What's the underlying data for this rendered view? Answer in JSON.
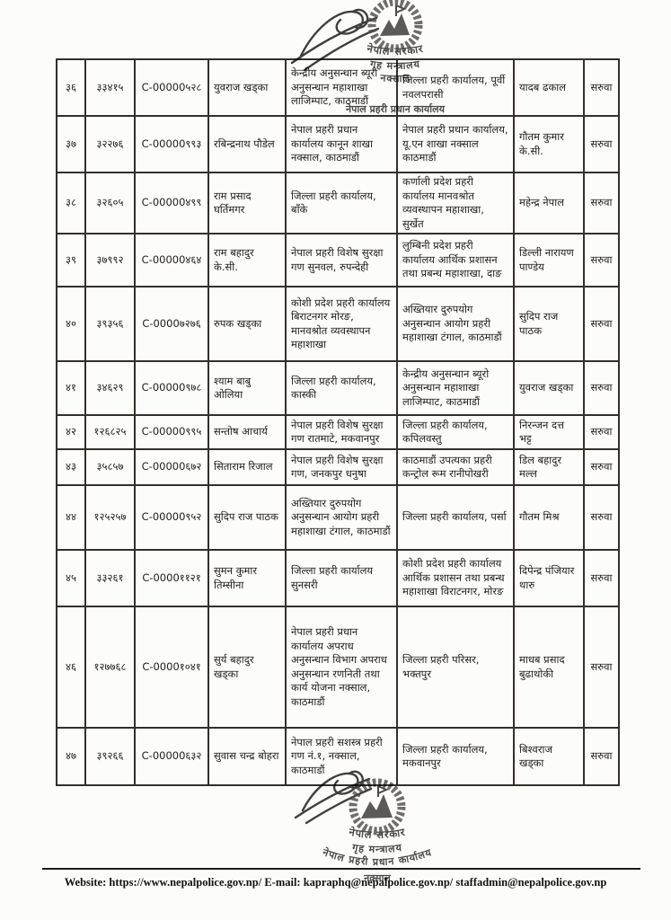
{
  "stamp": {
    "line1": "नेपाल सरकार",
    "line2": "गृह मन्त्रालय",
    "line3": "नेपाल प्रहरी प्रधान कार्यालय",
    "line4": "नक्साल"
  },
  "footer": {
    "full_text": "Website: https://www.nepalpolice.gov.np/ E-mail: kapraphq@nepalpolice.gov.np/ staffadmin@nepalpolice.gov.np"
  },
  "table": {
    "rows": [
      {
        "sn": "३६",
        "code": "३३४१५",
        "cno": "C-00000५२८",
        "name": "युवराज खड्का",
        "current_office": "केन्द्रीय अनुसन्धान ब्यूरो अनुसन्धान महाशाखा लाजिम्पाट, काठमाडौं",
        "new_office": "जिल्ला प्रहरी कार्यालय, पूर्वी नवलपरासी",
        "recommender": "यादब ढकाल",
        "status": "सरुवा"
      },
      {
        "sn": "३७",
        "code": "३२२७६",
        "cno": "C-00000९९३",
        "name": "रबिन्द्रनाथ पौडेल",
        "current_office": "नेपाल प्रहरी प्रधान कार्यालय कानून शाखा नक्साल, काठमाडौं",
        "new_office": "नेपाल प्रहरी प्रधान कार्यालय, यू.एन शाखा नक्साल काठमाडौं",
        "recommender": "गौतम कुमार के.सी.",
        "status": "सरुवा"
      },
      {
        "sn": "३८",
        "code": "३२६०५",
        "cno": "C-00000४९९",
        "name": "राम प्रसाद घर्तिमगर",
        "current_office": "जिल्ला प्रहरी कार्यालय, बाँके",
        "new_office": "कर्णाली प्रदेश प्रहरी कार्यालय मानवश्रोत व्यवस्थापन महाशाखा, सुर्खेत",
        "recommender": "महेन्द्र नेपाल",
        "status": "सरुवा"
      },
      {
        "sn": "३९",
        "code": "३७९९२",
        "cno": "C-00000४६४",
        "name": "राम बहादुर के.सी.",
        "current_office": "नेपाल प्रहरी विशेष सुरक्षा गण सुनवल, रुपन्देही",
        "new_office": "लुम्बिनी प्रदेश प्रहरी कार्यालय आर्थिक प्रशासन तथा प्रबन्ध महाशाखा, दाङ",
        "recommender": "डिल्ली नारायण पाण्डेय",
        "status": "सरुवा"
      },
      {
        "sn": "४०",
        "code": "३९३५६",
        "cno": "C-0000७२७६",
        "name": "रुपक खड्का",
        "current_office": "कोशी प्रदेश प्रहरी कार्यालय बिराटनगर मोरङ, मानवश्रोत व्यवस्थापन महाशाखा",
        "new_office": "अख्तियार दुरुपयोग अनुसन्धान आयोग प्रहरी महाशाखा टंगाल, काठमाडौं",
        "recommender": "सुदिप राज पाठक",
        "status": "सरुवा"
      },
      {
        "sn": "४१",
        "code": "३४६२९",
        "cno": "C-00000९७८",
        "name": "श्याम बाबु ओलिया",
        "current_office": "जिल्ला प्रहरी कार्यालय, कास्की",
        "new_office": "केन्द्रीय अनुसन्धान ब्यूरो अनुसन्धान महाशाखा लाजिम्पाट, काठमाडौं",
        "recommender": "युवराज खड्का",
        "status": "सरुवा"
      },
      {
        "sn": "४२",
        "code": "१२६८२५",
        "cno": "C-00000९९५",
        "name": "सन्तोष आचार्य",
        "current_office": "नेपाल प्रहरी विशेष सुरक्षा गण रातमाटे, मकवानपुर",
        "new_office": "जिल्ला प्रहरी कार्यालय, कपिलवस्तु",
        "recommender": "निरन्जन दत्त भट्ट",
        "status": "सरुवा"
      },
      {
        "sn": "४३",
        "code": "३५८५७",
        "cno": "C-00000६७२",
        "name": "सिताराम रिजाल",
        "current_office": "नेपाल प्रहरी विशेष सुरक्षा गण, जनकपुर धनुषा",
        "new_office": "काठमाडौं उपत्यका प्रहरी कन्ट्रोल रूम रानीपोखरी",
        "recommender": "डिल बहादुर मल्ल",
        "status": "सरुवा"
      },
      {
        "sn": "४४",
        "code": "१२५२५७",
        "cno": "C-00000९५२",
        "name": "सुदिप राज पाठक",
        "current_office": "अख्तियार दुरुपयोग अनुसन्धान आयोग प्रहरी महाशाखा टंगाल, काठमाडौं",
        "new_office": "जिल्ला प्रहरी कार्यालय, पर्सा",
        "recommender": "गौतम मिश्र",
        "status": "सरुवा"
      },
      {
        "sn": "४५",
        "code": "३३२६१",
        "cno": "C-0000११२१",
        "name": "सुमन कुमार तिम्सीना",
        "current_office": "जिल्ला प्रहरी कार्यालय सुनसरी",
        "new_office": "कोशी प्रदेश प्रहरी कार्यालय आर्थिक प्रशासन तथा प्रबन्ध महाशाखा  विराटनगर, मोरङ",
        "recommender": "दिपेन्द्र पंजियार थारु",
        "status": "सरुवा"
      },
      {
        "sn": "४६",
        "code": "१२७७६८",
        "cno": "C-0000१०४१",
        "name": "सुर्य बहादुर खड्का",
        "current_office": "नेपाल प्रहरी प्रधान कार्यालय अपराध अनुसन्धान विभाग अपराध अनुसन्धान रणनिती तथा कार्य योजना नक्साल, काठमाडौं",
        "new_office": "जिल्ला प्रहरी परिसर, भक्तपुर",
        "recommender": "माधब प्रसाद बुढाथोकी",
        "status": "सरुवा"
      },
      {
        "sn": "४७",
        "code": "३९२६६",
        "cno": "C-00000६३२",
        "name": "सुवास चन्द्र बोहरा",
        "current_office": "नेपाल प्रहरी सशस्त्र प्रहरी गण नं.१, नक्साल, काठमाडौं",
        "new_office": "जिल्ला प्रहरी कार्यालय, मकवानपुर",
        "recommender": "बिश्वराज खड्का",
        "status": "सरुवा"
      }
    ]
  }
}
